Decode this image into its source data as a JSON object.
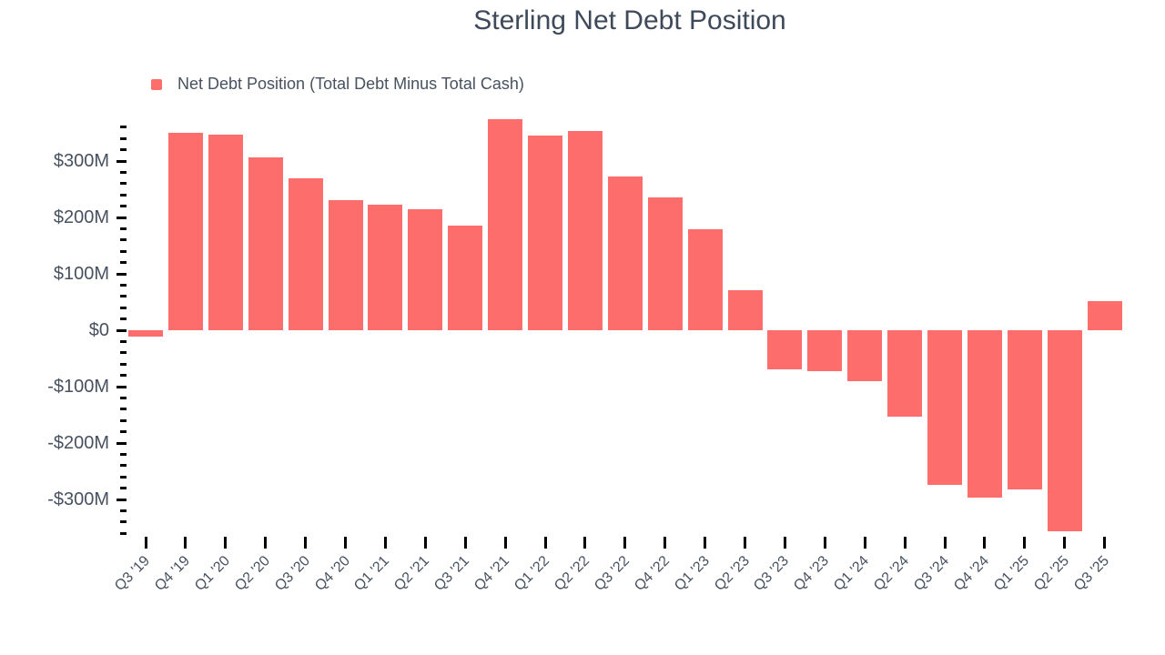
{
  "title": "Sterling Net Debt Position",
  "legend": {
    "label": "Net Debt Position (Total Debt Minus Total Cash)"
  },
  "colors": {
    "bar": "#FC6D6C",
    "title_text": "#3E4959",
    "axis_text": "#47515F",
    "tick": "#000000",
    "background": "#FFFFFF"
  },
  "chart_data": {
    "type": "bar",
    "title": "Sterling Net Debt Position",
    "series_name": "Net Debt Position (Total Debt Minus Total Cash)",
    "xlabel": "",
    "ylabel": "",
    "y_unit": "USD millions",
    "grid": false,
    "legend_position": "top-left",
    "ylim": [
      -370,
      380
    ],
    "categories": [
      "Q3 '19",
      "Q4 '19",
      "Q1 '20",
      "Q2 '20",
      "Q3 '20",
      "Q4 '20",
      "Q1 '21",
      "Q2 '21",
      "Q3 '21",
      "Q4 '21",
      "Q1 '22",
      "Q2 '22",
      "Q3 '22",
      "Q4 '22",
      "Q1 '23",
      "Q2 '23",
      "Q3 '23",
      "Q4 '23",
      "Q1 '24",
      "Q2 '24",
      "Q3 '24",
      "Q4 '24",
      "Q1 '25",
      "Q2 '25",
      "Q3 '25"
    ],
    "values": [
      -12,
      350,
      346,
      307,
      270,
      231,
      223,
      215,
      186,
      374,
      345,
      353,
      273,
      235,
      179,
      71,
      -69,
      -73,
      -90,
      -153,
      -274,
      -296,
      -282,
      -356,
      52
    ],
    "y_axis": {
      "major_ticks": [
        {
          "value": 300,
          "label": "$300M"
        },
        {
          "value": 200,
          "label": "$200M"
        },
        {
          "value": 100,
          "label": "$100M"
        },
        {
          "value": 0,
          "label": "$0"
        },
        {
          "value": -100,
          "label": "-$100M"
        },
        {
          "value": -200,
          "label": "-$200M"
        },
        {
          "value": -300,
          "label": "-$300M"
        }
      ],
      "minor_tick_step": 20,
      "minor_tick_range": [
        -360,
        360
      ]
    }
  }
}
